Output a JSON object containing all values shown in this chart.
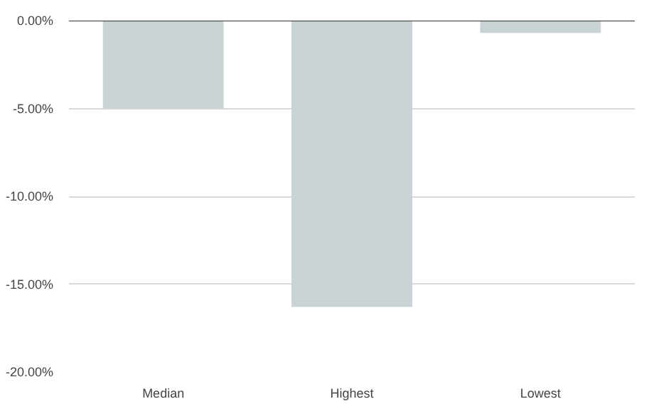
{
  "chart_data": {
    "type": "bar",
    "categories": [
      "Median",
      "Highest",
      "Lowest"
    ],
    "values": [
      -5.0,
      -16.3,
      -0.7
    ],
    "color": "#c9d2d5",
    "ylim": [
      -20,
      0
    ],
    "yticks": [
      {
        "value": 0,
        "label": "0.00%"
      },
      {
        "value": -5,
        "label": "-5.00%"
      },
      {
        "value": -10,
        "label": "-10.00%"
      },
      {
        "value": -15,
        "label": "-15.00%"
      },
      {
        "value": -20,
        "label": "-20.00%"
      }
    ],
    "grid": "y",
    "ref_lines": [
      {
        "axis": "y",
        "value": 0,
        "color": "#333333"
      }
    ]
  }
}
